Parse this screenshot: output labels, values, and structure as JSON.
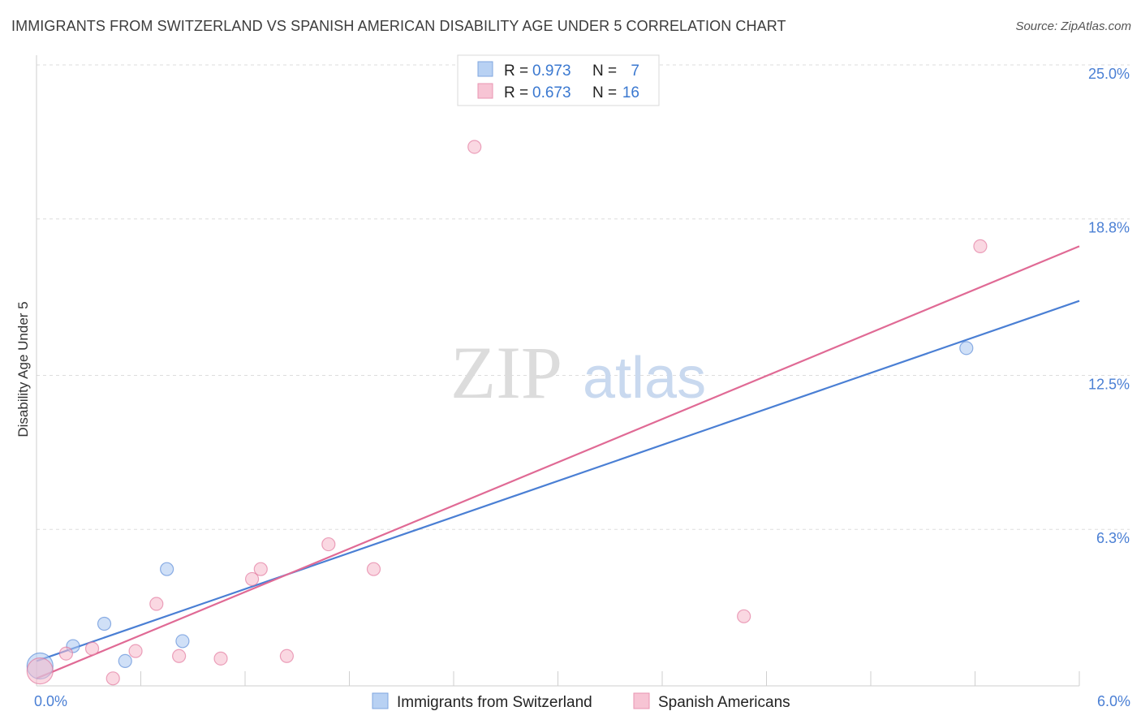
{
  "title": "IMMIGRANTS FROM SWITZERLAND VS SPANISH AMERICAN DISABILITY AGE UNDER 5 CORRELATION CHART",
  "source": "Source: ZipAtlas.com",
  "watermark": {
    "zip": "ZIP",
    "atlas": "atlas"
  },
  "chart_data": {
    "type": "scatter",
    "ylabel": "Disability Age Under 5",
    "xlim": [
      0.0,
      6.0
    ],
    "ylim": [
      0.0,
      25.0
    ],
    "x_tick_labels": [
      {
        "value": 0.0,
        "label": "0.0%"
      },
      {
        "value": 6.0,
        "label": "6.0%"
      }
    ],
    "y_tick_labels": [
      {
        "value": 6.3,
        "label": "6.3%"
      },
      {
        "value": 12.5,
        "label": "12.5%"
      },
      {
        "value": 18.8,
        "label": "18.8%"
      },
      {
        "value": 25.0,
        "label": "25.0%"
      }
    ],
    "grid": "horizontal dashed",
    "legend_placement": "top-center",
    "series": [
      {
        "name": "Immigrants from Switzerland",
        "color": "#4a7fd4",
        "fill": "#a9c6f0",
        "r_label": "R =",
        "r_value": "0.973",
        "n_label": "N =",
        "n_value": "7",
        "points": [
          {
            "x": 0.02,
            "y": 0.8,
            "big": true
          },
          {
            "x": 0.21,
            "y": 1.6
          },
          {
            "x": 0.39,
            "y": 2.5
          },
          {
            "x": 0.51,
            "y": 1.0
          },
          {
            "x": 0.75,
            "y": 4.7
          },
          {
            "x": 0.84,
            "y": 1.8
          },
          {
            "x": 5.35,
            "y": 13.6
          }
        ],
        "trend": {
          "x0": 0.0,
          "y0": 1.0,
          "x1": 6.0,
          "y1": 15.5
        }
      },
      {
        "name": "Spanish Americans",
        "color": "#e06a95",
        "fill": "#f5b8cb",
        "r_label": "R =",
        "r_value": "0.673",
        "n_label": "N =",
        "n_value": "16",
        "points": [
          {
            "x": 0.02,
            "y": 0.6,
            "big": true
          },
          {
            "x": 0.17,
            "y": 1.3
          },
          {
            "x": 0.32,
            "y": 1.5
          },
          {
            "x": 0.44,
            "y": 0.3
          },
          {
            "x": 0.57,
            "y": 1.4
          },
          {
            "x": 0.69,
            "y": 3.3
          },
          {
            "x": 0.82,
            "y": 1.2
          },
          {
            "x": 1.06,
            "y": 1.1
          },
          {
            "x": 1.24,
            "y": 4.3
          },
          {
            "x": 1.29,
            "y": 4.7
          },
          {
            "x": 1.44,
            "y": 1.2
          },
          {
            "x": 1.68,
            "y": 5.7
          },
          {
            "x": 1.94,
            "y": 4.7
          },
          {
            "x": 2.52,
            "y": 21.7
          },
          {
            "x": 4.07,
            "y": 2.8
          },
          {
            "x": 5.43,
            "y": 17.7
          }
        ],
        "trend": {
          "x0": 0.0,
          "y0": 0.3,
          "x1": 6.0,
          "y1": 17.7
        }
      }
    ]
  }
}
